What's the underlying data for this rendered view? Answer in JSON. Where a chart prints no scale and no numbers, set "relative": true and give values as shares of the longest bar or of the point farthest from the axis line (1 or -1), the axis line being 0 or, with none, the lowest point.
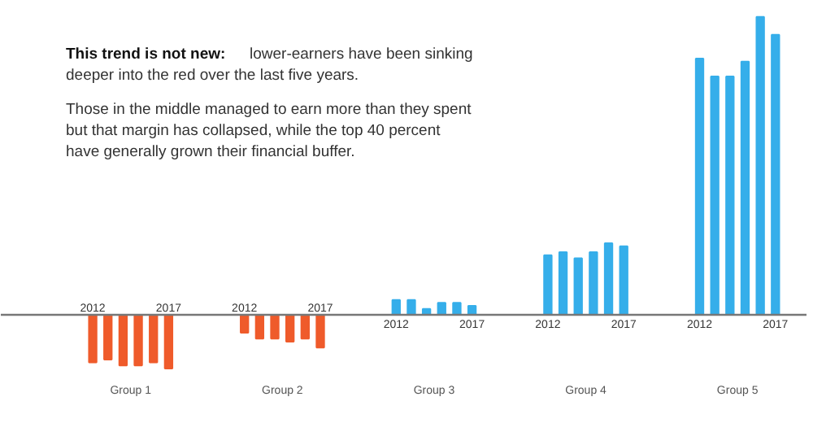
{
  "chart_data": {
    "type": "bar",
    "relative": true,
    "title": "This trend is not new: lower-earners have been sinking deeper into the red over the last five years.",
    "subtitle": "Those in the middle managed to earn more than they spent but that margin has collapsed, while the top 40 percent have generally grown their financial buffer.",
    "categories": [
      "2012",
      null,
      null,
      null,
      null,
      "2017",
      null,
      null,
      null,
      null,
      "2012",
      null,
      null,
      null,
      null,
      "2017",
      null,
      null,
      null,
      null,
      "2012",
      null,
      null,
      null,
      null,
      "2017",
      null,
      null,
      null,
      null,
      "2012",
      null,
      null,
      null,
      null,
      "2017",
      null,
      null,
      null,
      null,
      "2012",
      null,
      null,
      null,
      null,
      "2017"
    ],
    "values": [
      -0.16,
      -0.15,
      -0.17,
      -0.17,
      -0.16,
      -0.18,
      null,
      null,
      null,
      null,
      -0.06,
      -0.08,
      -0.08,
      -0.09,
      -0.08,
      -0.11,
      null,
      null,
      null,
      null,
      0.05,
      0.05,
      0.02,
      0.04,
      0.04,
      0.03,
      null,
      null,
      null,
      null,
      0.2,
      0.21,
      0.19,
      0.21,
      0.24,
      0.23,
      null,
      null,
      null,
      null,
      0.86,
      0.8,
      0.8,
      0.85,
      1,
      0.94
    ],
    "colors": [
      "#ef5b2b",
      "#ef5b2b",
      "#ef5b2b",
      "#ef5b2b",
      "#ef5b2b",
      "#ef5b2b",
      null,
      null,
      null,
      null,
      "#ef5b2b",
      "#ef5b2b",
      "#ef5b2b",
      "#ef5b2b",
      "#ef5b2b",
      "#ef5b2b",
      null,
      null,
      null,
      null,
      "#35aeea",
      "#35aeea",
      "#35aeea",
      "#35aeea",
      "#35aeea",
      "#35aeea",
      null,
      null,
      null,
      null,
      "#35aeea",
      "#35aeea",
      "#35aeea",
      "#35aeea",
      "#35aeea",
      "#35aeea",
      null,
      null,
      null,
      null,
      "#35aeea",
      "#35aeea",
      "#35aeea",
      "#35aeea",
      "#35aeea",
      "#35aeea"
    ],
    "annotations": [
      "Group 1",
      "Group 2",
      "Group 3",
      "Group 4",
      "Group 5"
    ]
  }
}
